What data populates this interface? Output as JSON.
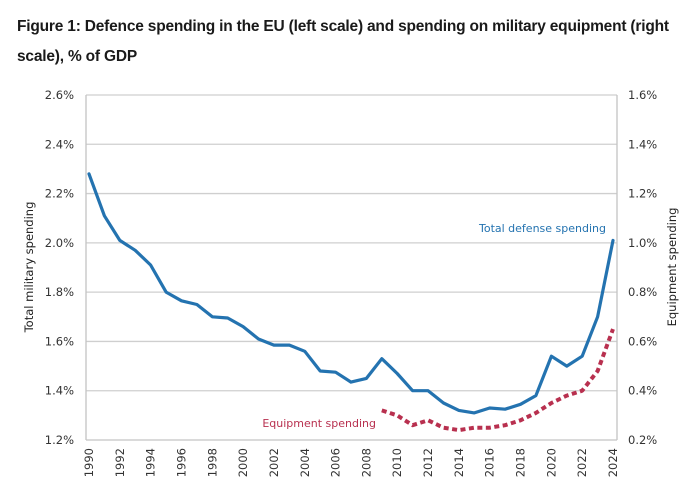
{
  "figure": {
    "title": "Figure 1: Defence spending in the EU (left scale) and spending on military equipment (right scale), % of GDP"
  },
  "chart_data": {
    "type": "line",
    "title": "Figure 1: Defence spending in the EU (left scale) and spending on military equipment (right scale), % of GDP",
    "xlabel": "",
    "ylabel": "Total military spending",
    "ylabel_right": "Equipment spending",
    "ylim": [
      1.2,
      2.6
    ],
    "ylim_right": [
      0.2,
      1.6
    ],
    "xlim": [
      1990,
      2024
    ],
    "grid": true,
    "legend": "inline annotations",
    "x_ticks": [
      "1990",
      "1992",
      "1994",
      "1996",
      "1998",
      "2000",
      "2002",
      "2004",
      "2006",
      "2008",
      "2010",
      "2012",
      "2014",
      "2016",
      "2018",
      "2020",
      "2022",
      "2024"
    ],
    "y_ticks_left": [
      "1.2%",
      "1.4%",
      "1.6%",
      "1.8%",
      "2.0%",
      "2.2%",
      "2.4%",
      "2.6%"
    ],
    "y_ticks_right": [
      "0.2%",
      "0.4%",
      "0.6%",
      "0.8%",
      "1.0%",
      "1.2%",
      "1.4%",
      "1.6%"
    ],
    "series": [
      {
        "name": "Total defense spending",
        "axis": "left",
        "style": "solid",
        "color": "#2473b0",
        "x": [
          1990,
          1991,
          1992,
          1993,
          1994,
          1995,
          1996,
          1997,
          1998,
          1999,
          2000,
          2001,
          2002,
          2003,
          2004,
          2005,
          2006,
          2007,
          2008,
          2009,
          2010,
          2011,
          2012,
          2013,
          2014,
          2015,
          2016,
          2017,
          2018,
          2019,
          2020,
          2021,
          2022,
          2023,
          2024
        ],
        "values": [
          2.28,
          2.11,
          2.01,
          1.97,
          1.91,
          1.8,
          1.765,
          1.75,
          1.7,
          1.695,
          1.66,
          1.61,
          1.585,
          1.585,
          1.56,
          1.48,
          1.475,
          1.435,
          1.45,
          1.53,
          1.47,
          1.4,
          1.4,
          1.35,
          1.32,
          1.31,
          1.33,
          1.325,
          1.345,
          1.38,
          1.54,
          1.5,
          1.54,
          1.7,
          2.01
        ]
      },
      {
        "name": "Equipment spending",
        "axis": "right",
        "style": "dotted",
        "color": "#b8304f",
        "x": [
          2009,
          2010,
          2011,
          2012,
          2013,
          2014,
          2015,
          2016,
          2017,
          2018,
          2019,
          2020,
          2021,
          2022,
          2023,
          2024
        ],
        "values": [
          0.32,
          0.3,
          0.26,
          0.28,
          0.25,
          0.24,
          0.25,
          0.25,
          0.26,
          0.28,
          0.31,
          0.35,
          0.38,
          0.4,
          0.48,
          0.65
        ]
      }
    ],
    "annotations": [
      {
        "text": "Total defense spending",
        "color": "#2473b0",
        "near": "2024 end of total series, top-right"
      },
      {
        "text": "Equipment spending",
        "color": "#b8304f",
        "near": "start of equipment series, bottom"
      }
    ]
  }
}
